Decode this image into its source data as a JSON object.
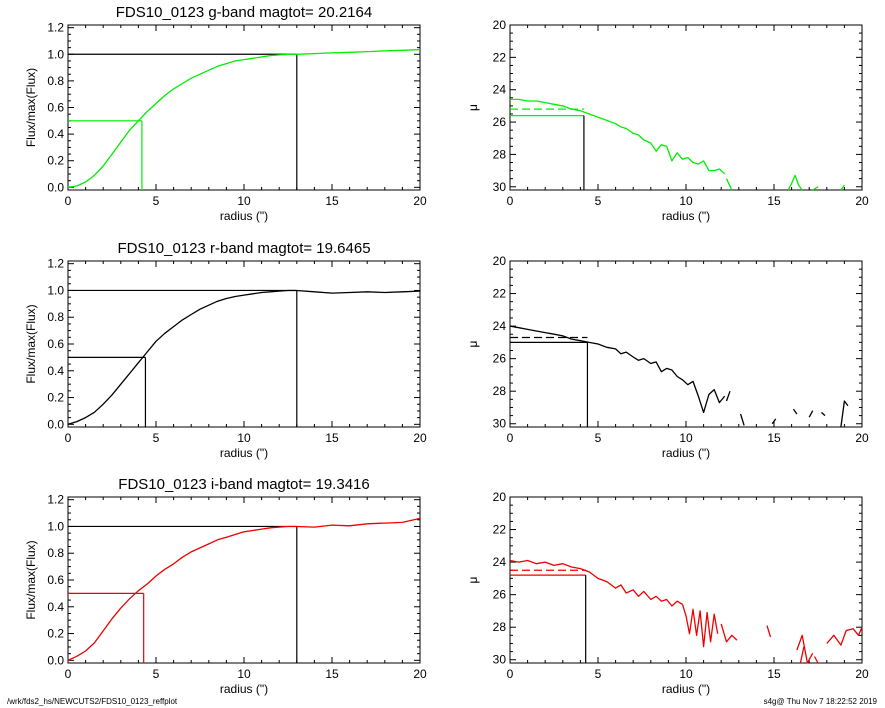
{
  "footer": {
    "path": "/wrk/fds2_hs/NEWCUTS2/FDS10_0123_reffplot",
    "stamp": "s4g@  Thu Nov  7 18:22:52 2019"
  },
  "chart_data": [
    {
      "type": "line",
      "band": "g",
      "title": "FDS10_0123 g-band  magtot=      20.2164",
      "xlabel": "radius (\")",
      "ylabel": "Flux/max(Flux)",
      "xlim": [
        0,
        20
      ],
      "ylim": [
        -0.02,
        1.22
      ],
      "xticks": [
        "0",
        "5",
        "10",
        "15",
        "20"
      ],
      "yticks": [
        "0.0",
        "0.2",
        "0.4",
        "0.6",
        "0.8",
        "1.0",
        "1.2"
      ],
      "color": "#00ee00",
      "series": [
        {
          "x": [
            0,
            0.5,
            1,
            1.5,
            2,
            2.5,
            3,
            3.5,
            4,
            4.5,
            5,
            5.5,
            6,
            6.5,
            7,
            7.5,
            8,
            8.5,
            9,
            9.5,
            10,
            10.5,
            11,
            11.5,
            12,
            12.5,
            13,
            14,
            15,
            16,
            17,
            18,
            19,
            20
          ],
          "y": [
            0.0,
            0.01,
            0.04,
            0.09,
            0.16,
            0.25,
            0.34,
            0.43,
            0.5,
            0.57,
            0.63,
            0.69,
            0.74,
            0.78,
            0.82,
            0.85,
            0.88,
            0.91,
            0.93,
            0.95,
            0.96,
            0.97,
            0.98,
            0.99,
            0.995,
            1.0,
            1.0,
            1.005,
            1.01,
            1.015,
            1.02,
            1.025,
            1.03,
            1.035
          ]
        }
      ],
      "ref_lines": {
        "r_half": 4.2,
        "half_flux": 0.5,
        "r_tot": 13.0,
        "tot_flux": 1.0
      }
    },
    {
      "type": "line",
      "band": "g",
      "title": "",
      "xlabel": "radius (\")",
      "ylabel": "μ",
      "xlim": [
        0,
        20
      ],
      "ylim": [
        30.2,
        20
      ],
      "xticks": [
        "0",
        "5",
        "10",
        "15",
        "20"
      ],
      "yticks": [
        "20",
        "22",
        "24",
        "26",
        "28",
        "30"
      ],
      "color": "#00ee00",
      "series": [
        {
          "x": [
            0,
            0.5,
            1,
            1.5,
            2,
            2.5,
            3,
            3.5,
            4,
            4.5,
            5,
            5.5,
            6,
            6.3,
            6.6,
            7,
            7.3,
            7.6,
            8,
            8.3,
            8.6,
            8.9,
            9.2,
            9.5,
            9.8,
            10.1,
            10.4,
            10.7,
            11,
            11.3,
            11.6,
            11.9,
            12.2
          ],
          "y": [
            24.6,
            24.6,
            24.7,
            24.7,
            24.8,
            24.9,
            25.0,
            25.2,
            25.3,
            25.5,
            25.7,
            25.9,
            26.1,
            26.3,
            26.4,
            26.7,
            26.8,
            27.1,
            27.3,
            27.8,
            27.4,
            27.5,
            28.4,
            27.9,
            28.3,
            28.2,
            28.5,
            28.6,
            28.4,
            29.0,
            29.0,
            28.9,
            29.2
          ]
        },
        {
          "x": [
            12.3,
            12.6
          ],
          "y": [
            29.5,
            30.2
          ]
        },
        {
          "x": [
            15.8,
            16.0,
            16.2,
            16.4,
            16.6
          ],
          "y": [
            30.2,
            29.8,
            29.3,
            29.9,
            30.2
          ]
        },
        {
          "x": [
            17.2,
            17.5
          ],
          "y": [
            30.2,
            30.0
          ]
        },
        {
          "x": [
            18.8,
            19.0
          ],
          "y": [
            30.2,
            29.9
          ]
        }
      ],
      "dashed_level": 25.2,
      "ref_lines": {
        "r_half": 4.2,
        "mu_half": 25.6
      }
    },
    {
      "type": "line",
      "band": "r",
      "title": "FDS10_0123 r-band  magtot=      19.6465",
      "xlabel": "radius (\")",
      "ylabel": "Flux/max(Flux)",
      "xlim": [
        0,
        20
      ],
      "ylim": [
        -0.02,
        1.22
      ],
      "xticks": [
        "0",
        "5",
        "10",
        "15",
        "20"
      ],
      "yticks": [
        "0.0",
        "0.2",
        "0.4",
        "0.6",
        "0.8",
        "1.0",
        "1.2"
      ],
      "color": "#000000",
      "series": [
        {
          "x": [
            0,
            0.5,
            1,
            1.5,
            2,
            2.5,
            3,
            3.5,
            4,
            4.5,
            5,
            5.5,
            6,
            6.5,
            7,
            7.5,
            8,
            8.5,
            9,
            9.5,
            10,
            10.5,
            11,
            11.5,
            12,
            12.5,
            13,
            14,
            15,
            16,
            17,
            18,
            19,
            20
          ],
          "y": [
            0.0,
            0.02,
            0.05,
            0.09,
            0.15,
            0.22,
            0.3,
            0.38,
            0.46,
            0.54,
            0.62,
            0.68,
            0.73,
            0.78,
            0.82,
            0.86,
            0.89,
            0.92,
            0.94,
            0.955,
            0.965,
            0.975,
            0.985,
            0.99,
            0.995,
            1.0,
            1.0,
            0.99,
            0.98,
            0.985,
            0.99,
            0.985,
            0.99,
            0.995
          ]
        }
      ],
      "ref_lines": {
        "r_half": 4.4,
        "half_flux": 0.5,
        "r_tot": 13.0,
        "tot_flux": 1.0
      }
    },
    {
      "type": "line",
      "band": "r",
      "title": "",
      "xlabel": "radius (\")",
      "ylabel": "μ",
      "xlim": [
        0,
        20
      ],
      "ylim": [
        30.2,
        20
      ],
      "xticks": [
        "0",
        "5",
        "10",
        "15",
        "20"
      ],
      "yticks": [
        "20",
        "22",
        "24",
        "26",
        "28",
        "30"
      ],
      "color": "#000000",
      "series": [
        {
          "x": [
            0,
            0.5,
            1,
            1.5,
            2,
            2.5,
            3,
            3.5,
            4,
            4.5,
            5,
            5.5,
            6,
            6.3,
            6.6,
            7,
            7.3,
            7.6,
            8,
            8.3,
            8.6,
            8.9,
            9.2,
            9.5,
            9.8,
            10.1,
            10.4,
            10.7,
            11,
            11.3,
            11.6,
            11.9,
            12.2
          ],
          "y": [
            24.0,
            24.1,
            24.2,
            24.3,
            24.4,
            24.5,
            24.6,
            24.8,
            24.9,
            25.0,
            25.1,
            25.3,
            25.4,
            25.7,
            25.6,
            25.9,
            26.1,
            26.0,
            26.3,
            26.2,
            26.8,
            26.6,
            26.7,
            27.1,
            27.3,
            27.6,
            27.4,
            28.3,
            29.3,
            28.2,
            27.9,
            28.7,
            28.3
          ]
        },
        {
          "x": [
            12.3,
            12.5
          ],
          "y": [
            28.6,
            28.0
          ]
        },
        {
          "x": [
            13.1,
            13.3
          ],
          "y": [
            29.4,
            30.1
          ]
        },
        {
          "x": [
            14.9,
            15.1
          ],
          "y": [
            30.0,
            29.7
          ]
        },
        {
          "x": [
            16.1,
            16.3
          ],
          "y": [
            29.1,
            29.4
          ]
        },
        {
          "x": [
            17.0,
            17.2
          ],
          "y": [
            29.6,
            29.2
          ]
        },
        {
          "x": [
            17.7,
            17.9
          ],
          "y": [
            29.3,
            29.5
          ]
        },
        {
          "x": [
            18.8,
            19.0,
            19.2
          ],
          "y": [
            30.2,
            28.6,
            28.9
          ]
        }
      ],
      "dashed_level": 24.7,
      "ref_lines": {
        "r_half": 4.4,
        "mu_half": 25.0
      }
    },
    {
      "type": "line",
      "band": "i",
      "title": "FDS10_0123 i-band  magtot=      19.3416",
      "xlabel": "radius (\")",
      "ylabel": "Flux/max(Flux)",
      "xlim": [
        0,
        20
      ],
      "ylim": [
        -0.02,
        1.22
      ],
      "xticks": [
        "0",
        "5",
        "10",
        "15",
        "20"
      ],
      "yticks": [
        "0.0",
        "0.2",
        "0.4",
        "0.6",
        "0.8",
        "1.0",
        "1.2"
      ],
      "color": "#ee0000",
      "series": [
        {
          "x": [
            0,
            0.5,
            1,
            1.5,
            2,
            2.5,
            3,
            3.5,
            4,
            4.5,
            5,
            5.5,
            6,
            6.5,
            7,
            7.5,
            8,
            8.5,
            9,
            9.5,
            10,
            10.5,
            11,
            11.5,
            12,
            12.5,
            13,
            14,
            15,
            16,
            17,
            18,
            19,
            20
          ],
          "y": [
            0.0,
            0.03,
            0.07,
            0.13,
            0.22,
            0.31,
            0.39,
            0.46,
            0.52,
            0.57,
            0.63,
            0.68,
            0.72,
            0.77,
            0.81,
            0.84,
            0.87,
            0.9,
            0.92,
            0.94,
            0.96,
            0.97,
            0.98,
            0.99,
            0.995,
            1.0,
            1.0,
            0.995,
            1.01,
            1.005,
            1.02,
            1.025,
            1.03,
            1.06
          ]
        }
      ],
      "ref_lines": {
        "r_half": 4.3,
        "half_flux": 0.5,
        "r_tot": 13.0,
        "tot_flux": 1.0
      }
    },
    {
      "type": "line",
      "band": "i",
      "title": "",
      "xlabel": "radius (\")",
      "ylabel": "μ",
      "xlim": [
        0,
        20
      ],
      "ylim": [
        30.2,
        20
      ],
      "xticks": [
        "0",
        "5",
        "10",
        "15",
        "20"
      ],
      "yticks": [
        "20",
        "22",
        "24",
        "26",
        "28",
        "30"
      ],
      "color": "#ee0000",
      "series": [
        {
          "x": [
            0,
            0.5,
            1,
            1.5,
            2,
            2.5,
            3,
            3.5,
            4,
            4.5,
            5,
            5.5,
            6,
            6.3,
            6.6,
            7,
            7.3,
            7.6,
            8,
            8.3,
            8.6,
            8.9,
            9.2,
            9.5,
            9.8
          ],
          "y": [
            23.9,
            24.0,
            23.9,
            24.1,
            24.0,
            24.2,
            24.1,
            24.3,
            24.4,
            24.6,
            25.0,
            25.2,
            25.6,
            25.4,
            25.9,
            25.7,
            26.1,
            25.8,
            26.3,
            26.1,
            26.4,
            26.3,
            26.7,
            26.4,
            26.6
          ]
        },
        {
          "x": [
            9.8,
            10.0,
            10.2,
            10.4,
            10.6,
            10.8,
            11.0,
            11.2,
            11.4,
            11.6,
            11.8
          ],
          "y": [
            26.6,
            27.3,
            28.4,
            26.9,
            28.5,
            27.0,
            29.2,
            27.1,
            28.9,
            27.2,
            28.4
          ]
        },
        {
          "x": [
            12.0,
            12.3,
            12.6,
            12.9
          ],
          "y": [
            27.8,
            28.9,
            28.5,
            28.8
          ]
        },
        {
          "x": [
            14.6,
            14.8
          ],
          "y": [
            27.9,
            28.6
          ]
        },
        {
          "x": [
            16.3,
            16.6,
            16.9,
            17.2
          ],
          "y": [
            29.4,
            28.5,
            30.2,
            29.6
          ]
        },
        {
          "x": [
            16.5,
            16.7
          ],
          "y": [
            30.2,
            29.2
          ]
        },
        {
          "x": [
            17.3,
            17.5
          ],
          "y": [
            29.8,
            30.2
          ]
        },
        {
          "x": [
            18.0,
            18.4,
            18.8,
            19.1,
            19.5,
            19.8,
            20.0
          ],
          "y": [
            29.0,
            28.5,
            29.1,
            28.2,
            28.1,
            28.5,
            28.0
          ]
        }
      ],
      "dashed_level": 24.5,
      "ref_lines": {
        "r_half": 4.3,
        "mu_half": 24.8
      }
    }
  ]
}
